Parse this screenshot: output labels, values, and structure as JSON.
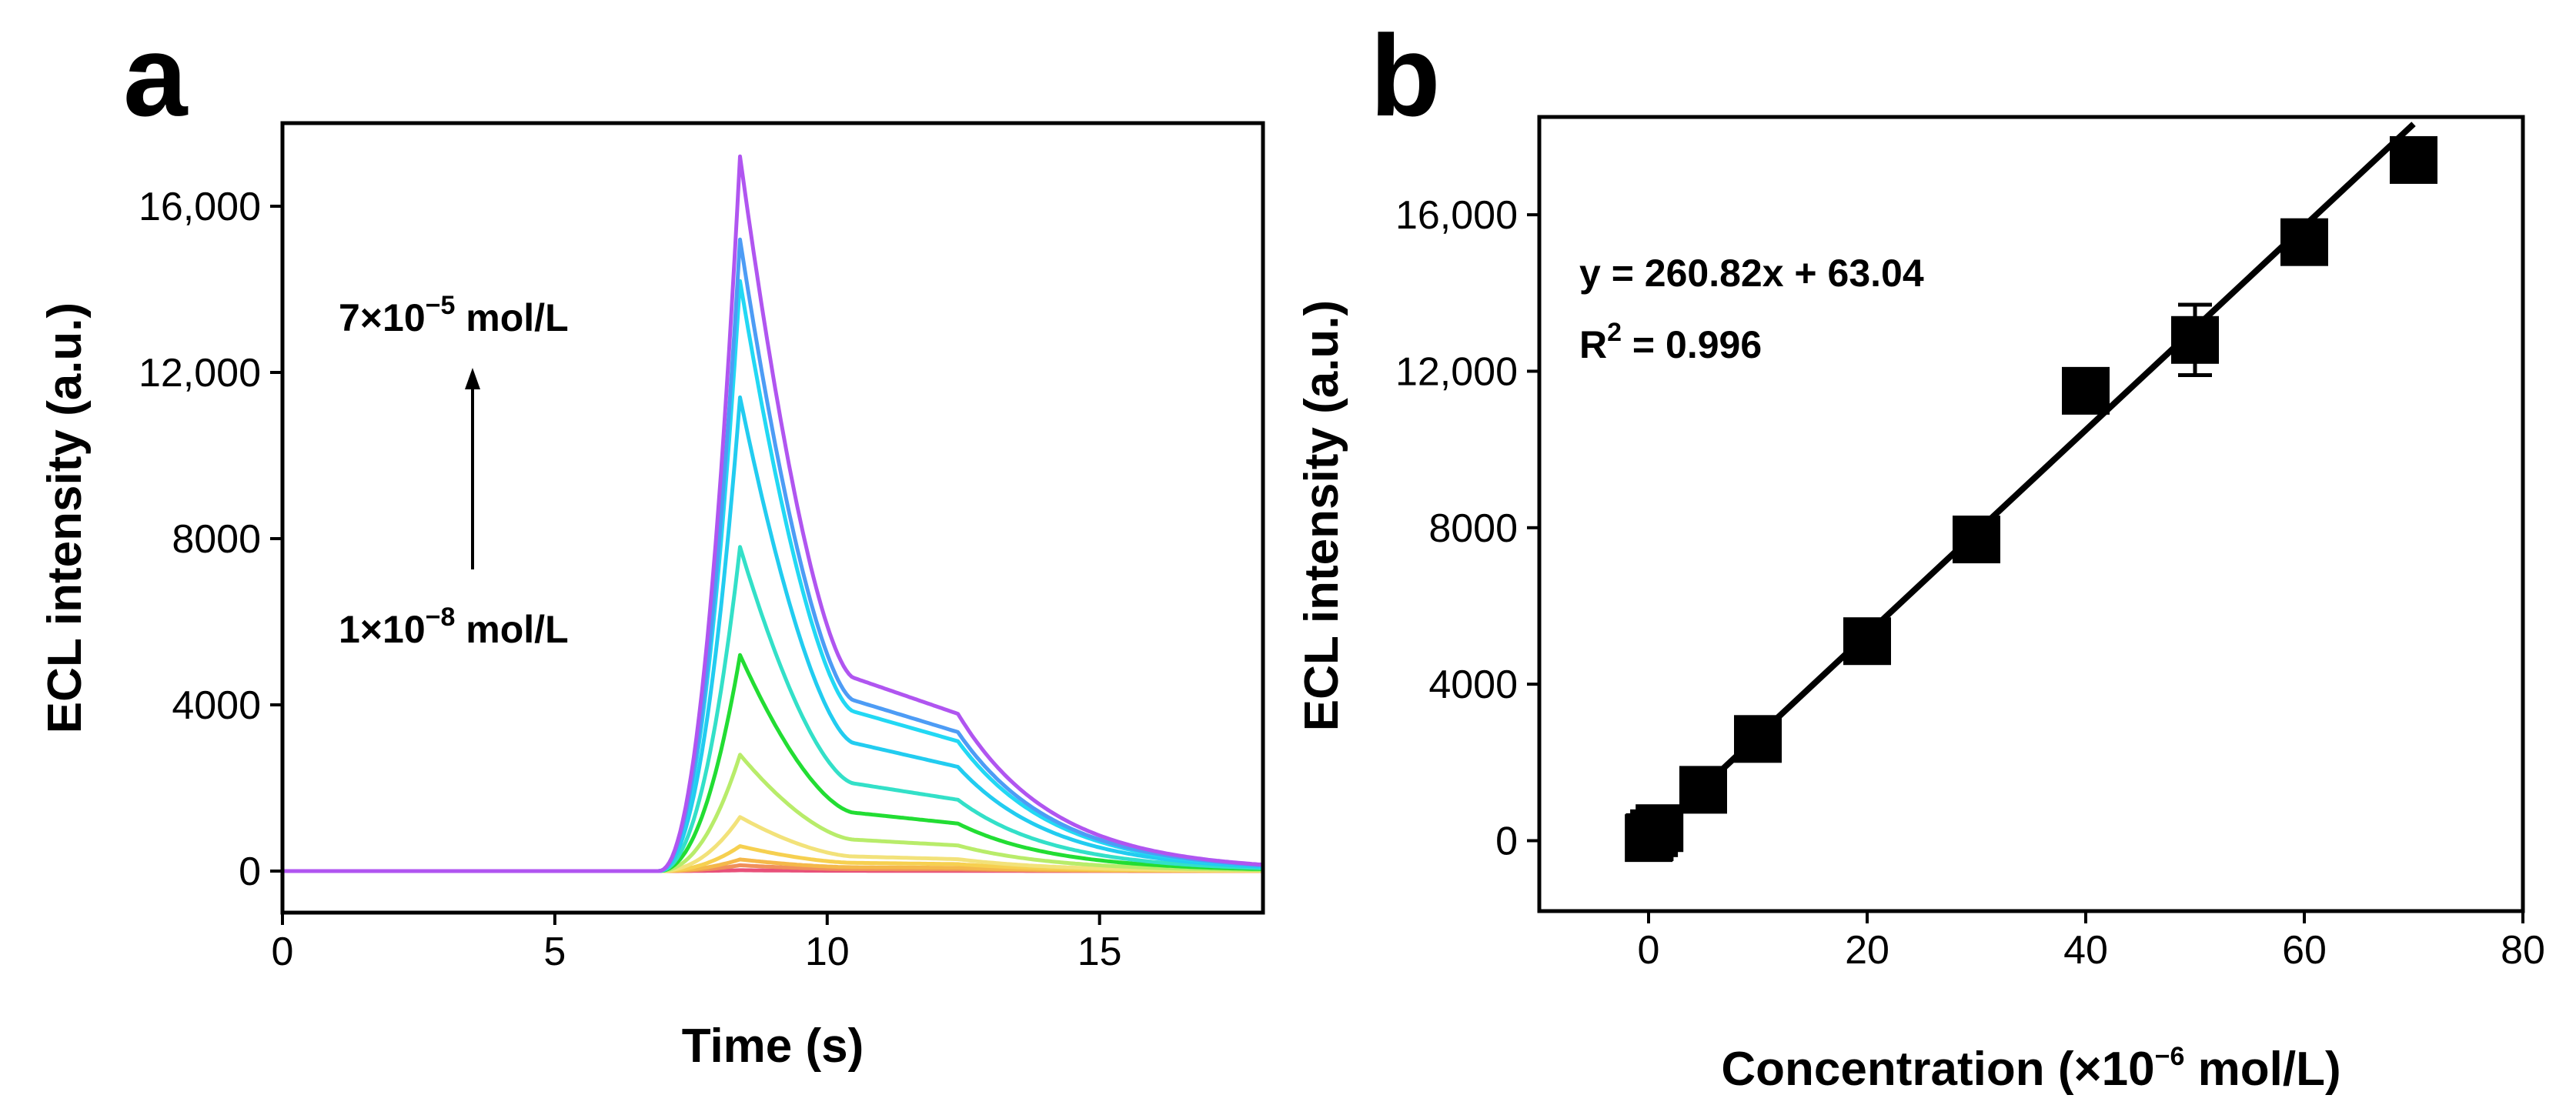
{
  "panels": {
    "a": {
      "letter": "a",
      "xlabel": "Time (s)",
      "ylabel": "ECL intensity (a.u.)",
      "xticks": [
        "0",
        "5",
        "10",
        "15"
      ],
      "yticks": [
        "0",
        "4000",
        "8000",
        "12,000",
        "16,000"
      ],
      "annotation_top": {
        "base": "7×10",
        "exp": "−5",
        "unit": " mol/L"
      },
      "annotation_bottom": {
        "base": "1×10",
        "exp": "−8",
        "unit": " mol/L"
      }
    },
    "b": {
      "letter": "b",
      "xlabel_prefix": "Concentration (×10",
      "xlabel_exp": "−6",
      "xlabel_suffix": " mol/L)",
      "ylabel": "ECL intensity (a.u.)",
      "xticks": [
        "0",
        "20",
        "40",
        "60",
        "80"
      ],
      "yticks": [
        "0",
        "4000",
        "8000",
        "12,000",
        "16,000"
      ],
      "equation": "y = 260.82x + 63.04",
      "r2_prefix": "R",
      "r2_exp": "2",
      "r2_suffix": " = 0.996"
    }
  },
  "chart_data": [
    {
      "type": "line",
      "xlabel": "Time (s)",
      "ylabel": "ECL intensity (a.u.)",
      "xlim": [
        0,
        18
      ],
      "ylim": [
        -1000,
        18000
      ],
      "peak_time": 8.4,
      "colors_low_to_high": [
        "#e8507a",
        "#f08a4a",
        "#f4b84a",
        "#f2e27a",
        "#b8ec6a",
        "#22dd33",
        "#33e0c8",
        "#22ccf0",
        "#4d9cf5",
        "#b055f0"
      ],
      "series_peaks": [
        20,
        140,
        280,
        600,
        1300,
        2800,
        5200,
        7800,
        11400,
        14200,
        15200,
        17200
      ]
    },
    {
      "type": "scatter",
      "xlabel": "Concentration (×10−6 mol/L)",
      "ylabel": "ECL intensity (a.u.)",
      "xlim": [
        -10,
        80
      ],
      "ylim": [
        -1800,
        18500
      ],
      "points": [
        {
          "x": 0.01,
          "y": 66
        },
        {
          "x": 0.1,
          "y": 90
        },
        {
          "x": 0.5,
          "y": 190
        },
        {
          "x": 1,
          "y": 320
        },
        {
          "x": 5,
          "y": 1300
        },
        {
          "x": 10,
          "y": 2600
        },
        {
          "x": 20,
          "y": 5100
        },
        {
          "x": 30,
          "y": 7700
        },
        {
          "x": 40,
          "y": 11500
        },
        {
          "x": 50,
          "y": 12800
        },
        {
          "x": 60,
          "y": 15300
        },
        {
          "x": 70,
          "y": 17400
        }
      ],
      "error_bar": {
        "x": 50,
        "low": 11900,
        "high": 13700
      },
      "fit": {
        "slope": 260.82,
        "intercept": 63.04,
        "x_range": [
          0,
          70
        ],
        "r2": 0.996
      }
    }
  ]
}
